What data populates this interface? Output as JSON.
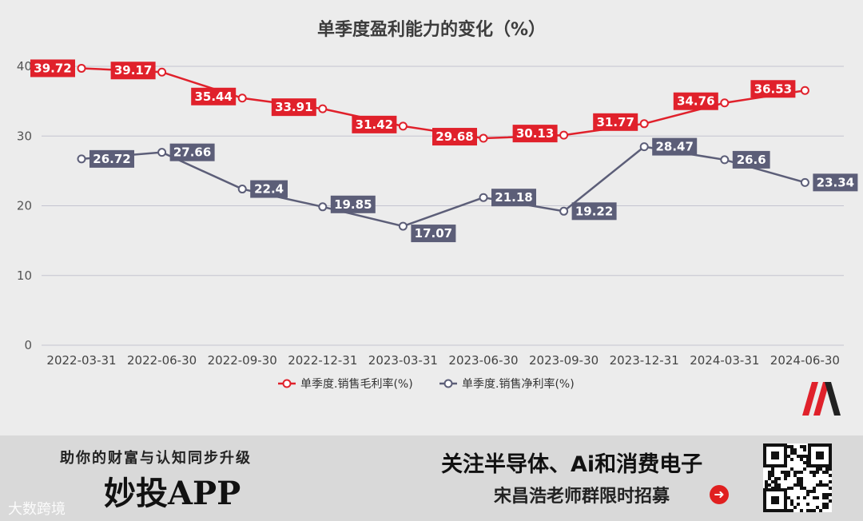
{
  "chart_data": {
    "type": "line",
    "title": "单季度盈利能力的变化（%）",
    "categories": [
      "2022-03-31",
      "2022-06-30",
      "2022-09-30",
      "2022-12-31",
      "2023-03-31",
      "2023-06-30",
      "2023-09-30",
      "2023-12-31",
      "2024-03-31",
      "2024-06-30"
    ],
    "ylim": [
      0,
      40
    ],
    "yticks": [
      0,
      10,
      20,
      30,
      40
    ],
    "grid": true,
    "legend_position": "bottom-center",
    "series": [
      {
        "name": "单季度.销售毛利率(%)",
        "color": "#e0212b",
        "values": [
          39.72,
          39.17,
          35.44,
          33.91,
          31.42,
          29.68,
          30.13,
          31.77,
          34.76,
          36.53
        ],
        "labels": [
          "39.72",
          "39.17",
          "35.44",
          "33.91",
          "31.42",
          "29.68",
          "30.13",
          "31.77",
          "34.76",
          "36.53"
        ]
      },
      {
        "name": "单季度.销售净利率(%)",
        "color": "#5c5e78",
        "values": [
          26.72,
          27.66,
          22.4,
          19.85,
          17.07,
          21.18,
          19.22,
          28.47,
          26.6,
          23.34
        ],
        "labels": [
          "26.72",
          "27.66",
          "22.4",
          "19.85",
          "17.07",
          "21.18",
          "19.22",
          "28.47",
          "26.6",
          "23.34"
        ]
      }
    ]
  },
  "banner": {
    "slogan": "助你的财富与认知同步升级",
    "app_name": "妙投APP",
    "watermark": "大数跨境",
    "right_title": "关注半导体、Ai和消费电子",
    "right_subtitle": "宋昌浩老师群限时招募",
    "arrow_icon": "arrow-right-circle-icon",
    "qr_icon": "qr-code-icon"
  },
  "colors": {
    "accent": "#e0212b",
    "secondary": "#5c5e78"
  }
}
